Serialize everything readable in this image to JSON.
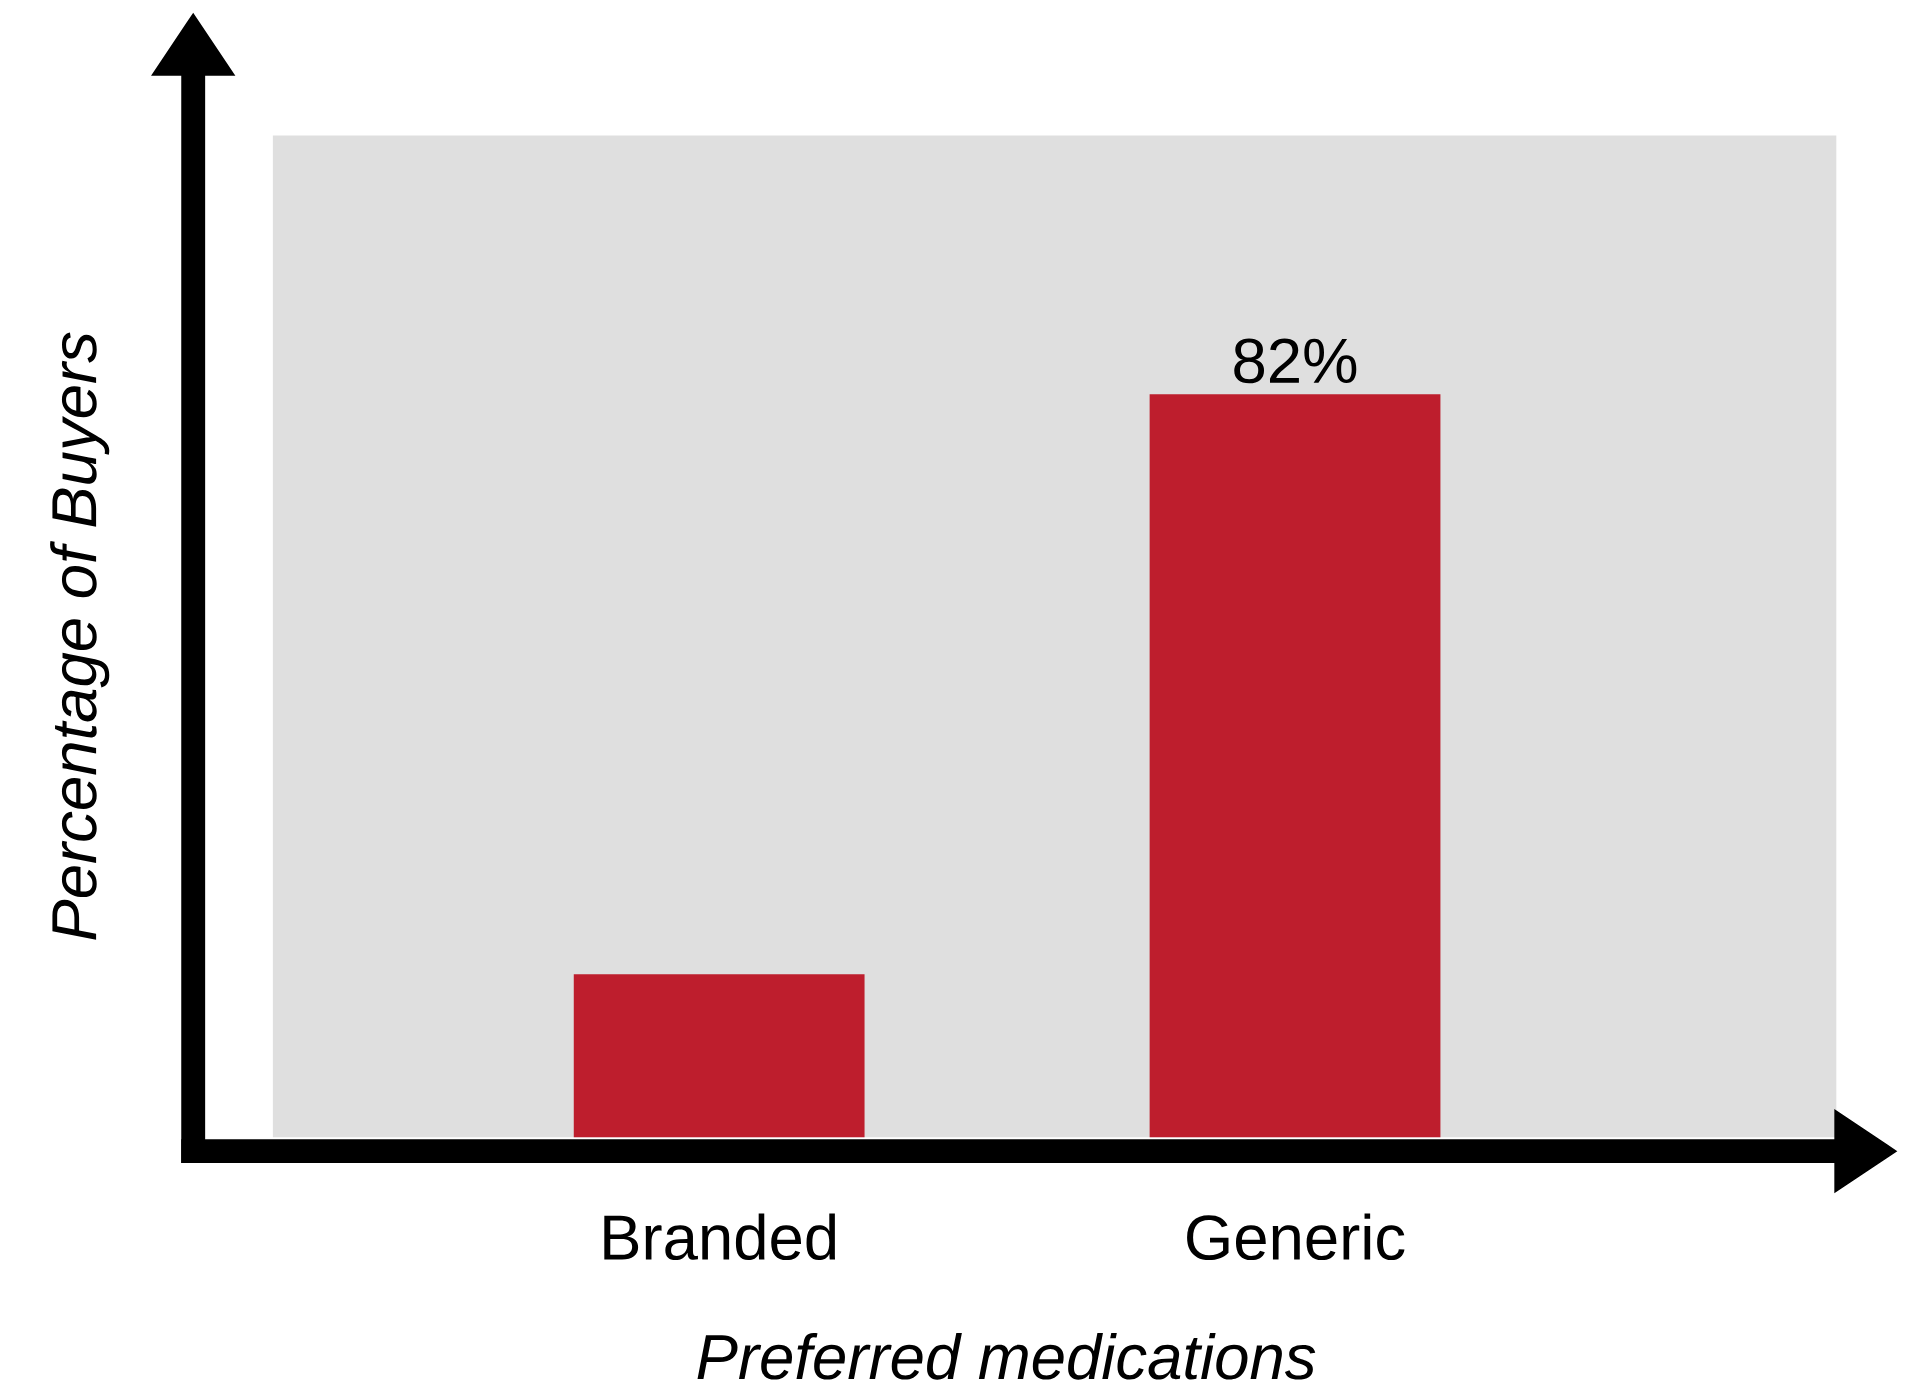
{
  "chart_data": {
    "type": "bar",
    "xlabel": "Preferred medications",
    "ylabel": "Percentage of Buyers",
    "categories": [
      "Branded",
      "Generic"
    ],
    "values": [
      18,
      82
    ],
    "value_labels": [
      null,
      "82%"
    ],
    "color": "#be1e2d"
  }
}
